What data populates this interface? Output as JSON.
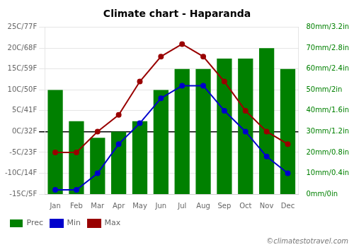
{
  "chart_data": {
    "type": "bar",
    "title": "Climate chart - Haparanda",
    "categories": [
      "Jan",
      "Feb",
      "Mar",
      "Apr",
      "May",
      "Jun",
      "Jul",
      "Aug",
      "Sep",
      "Oct",
      "Nov",
      "Dec"
    ],
    "series": [
      {
        "name": "Prec",
        "type": "bar",
        "axis": "y2",
        "color": "#008000",
        "values": [
          50,
          35,
          27,
          30,
          35,
          50,
          60,
          60,
          65,
          65,
          70,
          60
        ]
      },
      {
        "name": "Min",
        "type": "line",
        "marker": "circle",
        "color": "#0000cc",
        "values": [
          -14,
          -14,
          -10,
          -3,
          2,
          8,
          11,
          11,
          5,
          0,
          -6,
          -10
        ]
      },
      {
        "name": "Max",
        "type": "line",
        "marker": "circle",
        "color": "#990000",
        "values": [
          -5,
          -5,
          0,
          4,
          12,
          18,
          21,
          18,
          12,
          5,
          0,
          -3
        ]
      }
    ],
    "ylim": [
      -15,
      25
    ],
    "yticks": [
      {
        "value": -15,
        "label": "-15C/5F"
      },
      {
        "value": -10,
        "label": "-10C/14F"
      },
      {
        "value": -5,
        "label": "-5C/23F"
      },
      {
        "value": 0,
        "label": "0C/32F"
      },
      {
        "value": 5,
        "label": "5C/41F"
      },
      {
        "value": 10,
        "label": "10C/50F"
      },
      {
        "value": 15,
        "label": "15C/59F"
      },
      {
        "value": 20,
        "label": "20C/68F"
      },
      {
        "value": 25,
        "label": "25C/77F"
      }
    ],
    "y2lim": [
      0,
      80
    ],
    "y2ticks": [
      {
        "value": 0,
        "label": "0mm/0in"
      },
      {
        "value": 10,
        "label": "10mm/0.4in"
      },
      {
        "value": 20,
        "label": "20mm/0.8in"
      },
      {
        "value": 30,
        "label": "30mm/1.2in"
      },
      {
        "value": 40,
        "label": "40mm/1.6in"
      },
      {
        "value": 50,
        "label": "50mm/2in"
      },
      {
        "value": 60,
        "label": "60mm/2.4in"
      },
      {
        "value": 70,
        "label": "70mm/2.8in"
      },
      {
        "value": 80,
        "label": "80mm/3.2in"
      }
    ],
    "hlines": [
      0
    ],
    "grid": true,
    "legend": "lower left",
    "annotations": [
      "©climatestotravel.com"
    ]
  }
}
